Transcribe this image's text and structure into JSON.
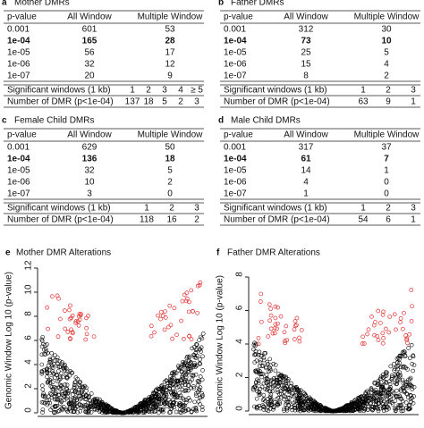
{
  "panels": [
    {
      "letter": "a",
      "title": "Mother DMRs",
      "header": [
        "p-value",
        "All Window",
        "Multiple Window"
      ],
      "rows": [
        [
          "0.001",
          "601",
          "53"
        ],
        [
          "1e-04",
          "165",
          "28"
        ],
        [
          "1e-05",
          "56",
          "17"
        ],
        [
          "1e-06",
          "32",
          "12"
        ],
        [
          "1e-07",
          "20",
          "9"
        ]
      ],
      "windows_label": "Significant windows (1 kb)",
      "windows": [
        "1",
        "2",
        "3",
        "4",
        "≥ 5"
      ],
      "dmr_label": "Number of DMR (p<1e-04)",
      "dmr": [
        "137",
        "18",
        "5",
        "2",
        "3"
      ]
    },
    {
      "letter": "b",
      "title": "Father DMRs",
      "header": [
        "p-value",
        "All Window",
        "Multiple Window"
      ],
      "rows": [
        [
          "0.001",
          "312",
          "30"
        ],
        [
          "1e-04",
          "73",
          "10"
        ],
        [
          "1e-05",
          "25",
          "5"
        ],
        [
          "1e-06",
          "15",
          "4"
        ],
        [
          "1e-07",
          "8",
          "2"
        ]
      ],
      "windows_label": "Significant windows (1 kb)",
      "windows": [
        "1",
        "2",
        "3"
      ],
      "dmr_label": "Number of DMR (p<1e-04)",
      "dmr": [
        "63",
        "9",
        "1"
      ]
    },
    {
      "letter": "c",
      "title": "Female Child DMRs",
      "header": [
        "p-value",
        "All Window",
        "Multiple Window"
      ],
      "rows": [
        [
          "0.001",
          "629",
          "50"
        ],
        [
          "1e-04",
          "136",
          "18"
        ],
        [
          "1e-05",
          "32",
          "5"
        ],
        [
          "1e-06",
          "10",
          "2"
        ],
        [
          "1e-07",
          "3",
          "0"
        ]
      ],
      "windows_label": "Significant windows (1 kb)",
      "windows": [
        "1",
        "2",
        "3"
      ],
      "dmr_label": "Number of DMR (p<1e-04)",
      "dmr": [
        "118",
        "16",
        "2"
      ]
    },
    {
      "letter": "d",
      "title": "Male Child DMRs",
      "header": [
        "p-value",
        "All Window",
        "Multiple Window"
      ],
      "rows": [
        [
          "0.001",
          "317",
          "37"
        ],
        [
          "1e-04",
          "61",
          "7"
        ],
        [
          "1e-05",
          "14",
          "1"
        ],
        [
          "1e-06",
          "4",
          "0"
        ],
        [
          "1e-07",
          "1",
          "0"
        ]
      ],
      "windows_label": "Significant windows (1 kb)",
      "windows": [
        "1",
        "2",
        "3"
      ],
      "dmr_label": "Number of DMR (p<1e-04)",
      "dmr": [
        "54",
        "6",
        "1"
      ]
    }
  ],
  "plots": [
    {
      "letter": "e",
      "title": "Mother DMR Alterations",
      "ylabel": "Genomic Window Log 10 (p-value)",
      "ylim": [
        0,
        12
      ],
      "yticks": [
        0,
        2,
        4,
        6,
        8,
        10,
        12
      ]
    },
    {
      "letter": "f",
      "title": "Father DMR Alterations",
      "ylabel": "Genomic Window Log 10 (p-value)",
      "ylim": [
        0,
        8
      ],
      "yticks": [
        0,
        2,
        4,
        6,
        8
      ]
    }
  ]
}
